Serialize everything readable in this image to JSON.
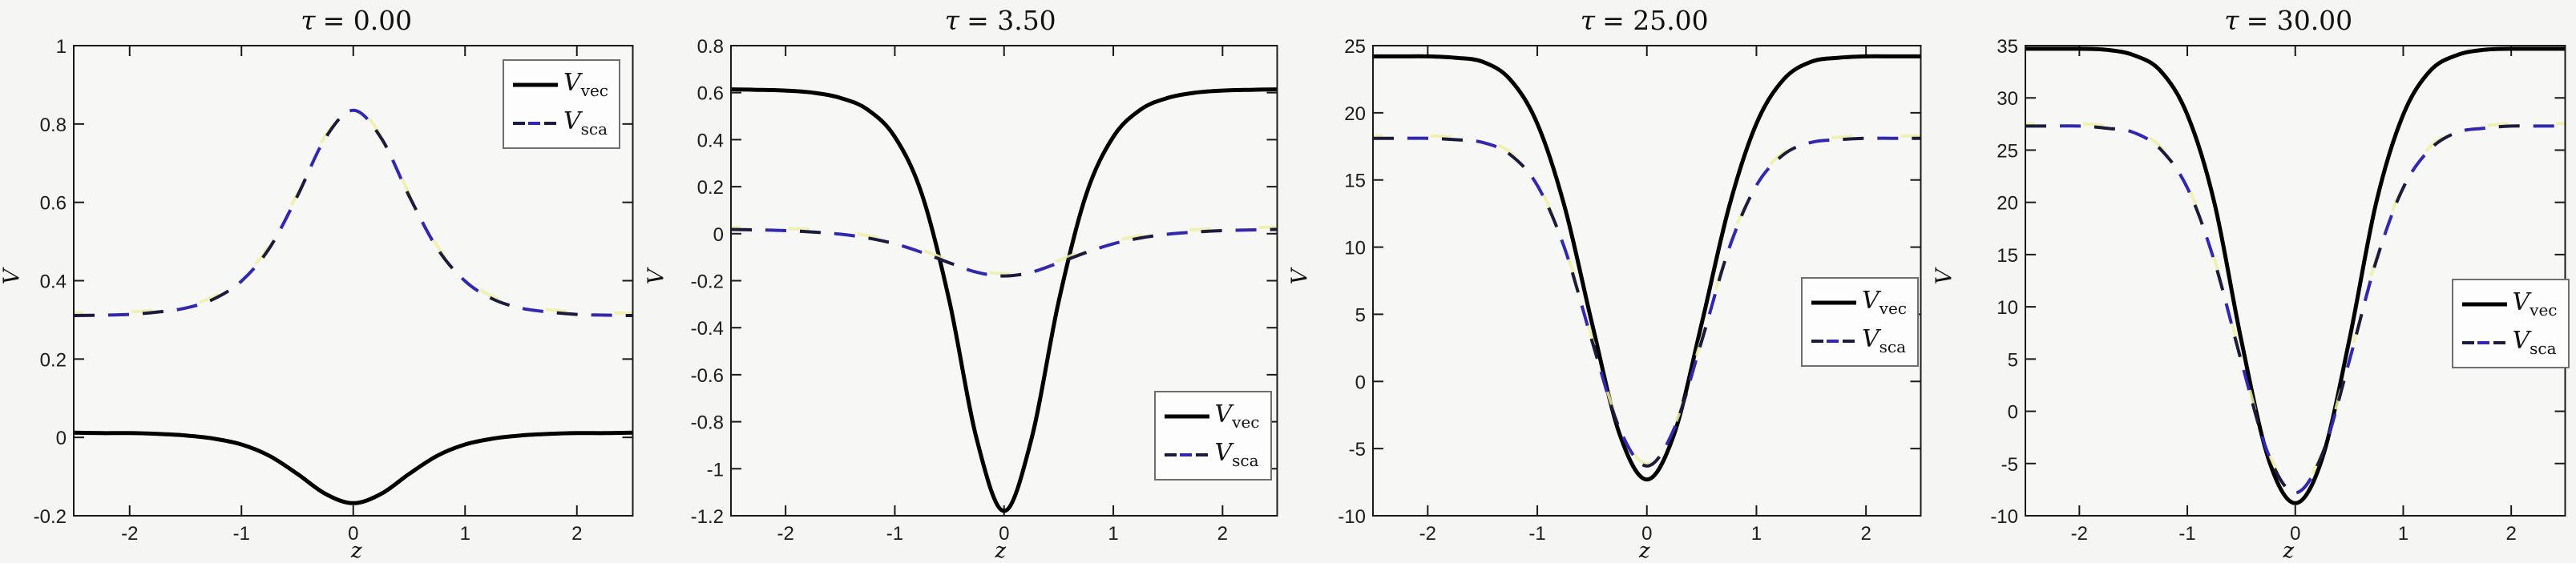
{
  "figure": {
    "background": "#f5f5f4",
    "axes_background": "#f7f7f6",
    "spine_color": "#1a1a1a",
    "tick_label_color": "#1c1c1c",
    "underlay_color": "#efefa8",
    "legend_background": "#fdfdfd",
    "legend_border_color": "#6f6f6f"
  },
  "chart_data": [
    {
      "type": "line",
      "tau": 0.0,
      "title": "τ = 0.00",
      "title_symbol": "τ",
      "title_rest": "= 0.00",
      "xlabel": "z",
      "ylabel": "V",
      "xlim": [
        -2.5,
        2.5
      ],
      "ylim": [
        -0.2,
        1
      ],
      "grid": false,
      "xticks": [
        -2,
        -1,
        0,
        1,
        2
      ],
      "xtick_labels": [
        "-2",
        "-1",
        "0",
        "1",
        "2"
      ],
      "yticks": [
        1,
        0.8,
        0.6,
        0.4,
        0.2,
        0,
        -0.2
      ],
      "ytick_labels": [
        "1",
        "0.8",
        "0.6",
        "0.4",
        "0.2",
        "0",
        "-0.2"
      ],
      "legend": {
        "position": "northeast",
        "entries": [
          {
            "symbol": "V",
            "sub": "vec",
            "line_style": "solid",
            "color": "#000000"
          },
          {
            "symbol": "V",
            "sub": "sca",
            "line_style": "dashed",
            "color": "#3228b0",
            "dash_alt_color": "#1b1b3c"
          }
        ]
      },
      "series": [
        {
          "name": "V_vec",
          "style": "solid",
          "color": "#000000",
          "x": [
            -2.5,
            -2.25,
            -2,
            -1.75,
            -1.5,
            -1.25,
            -1,
            -0.75,
            -0.5,
            -0.25,
            0,
            0.25,
            0.5,
            0.75,
            1,
            1.25,
            1.5,
            1.75,
            2,
            2.25,
            2.5
          ],
          "y": [
            0.012,
            0.011,
            0.011,
            0.009,
            0.005,
            -0.003,
            -0.018,
            -0.047,
            -0.093,
            -0.144,
            -0.168,
            -0.144,
            -0.093,
            -0.047,
            -0.018,
            -0.003,
            0.005,
            0.009,
            0.011,
            0.011,
            0.012
          ]
        },
        {
          "name": "V_sca",
          "style": "dashed",
          "color": "#3228b0",
          "dash_alt_color": "#1b1b3c",
          "x": [
            -2.5,
            -2.25,
            -2,
            -1.75,
            -1.5,
            -1.25,
            -1,
            -0.75,
            -0.5,
            -0.25,
            0,
            0.25,
            0.5,
            0.75,
            1,
            1.25,
            1.5,
            1.75,
            2,
            2.25,
            2.5
          ],
          "y": [
            0.311,
            0.312,
            0.314,
            0.32,
            0.33,
            0.353,
            0.399,
            0.483,
            0.616,
            0.764,
            0.835,
            0.764,
            0.616,
            0.483,
            0.399,
            0.353,
            0.33,
            0.32,
            0.314,
            0.312,
            0.311
          ]
        }
      ]
    },
    {
      "type": "line",
      "tau": 3.5,
      "title": "τ = 3.50",
      "title_symbol": "τ",
      "title_rest": "= 3.50",
      "xlabel": "z",
      "ylabel": "V",
      "xlim": [
        -2.5,
        2.5
      ],
      "ylim": [
        -1.2,
        0.8
      ],
      "grid": false,
      "xticks": [
        -2,
        -1,
        0,
        1,
        2
      ],
      "xtick_labels": [
        "-2",
        "-1",
        "0",
        "1",
        "2"
      ],
      "yticks": [
        0.8,
        0.6,
        0.4,
        0.2,
        0,
        -0.2,
        -0.4,
        -0.6,
        -0.8,
        -1,
        -1.2
      ],
      "ytick_labels": [
        "0.8",
        "0.6",
        "0.4",
        "0.2",
        "0",
        "-0.2",
        "-0.4",
        "-0.6",
        "-0.8",
        "-1",
        "-1.2"
      ],
      "legend": {
        "position": "southeast",
        "entries": [
          {
            "symbol": "V",
            "sub": "vec",
            "line_style": "solid",
            "color": "#000000"
          },
          {
            "symbol": "V",
            "sub": "sca",
            "line_style": "dashed",
            "color": "#3228b0",
            "dash_alt_color": "#1b1b3c"
          }
        ]
      },
      "series": [
        {
          "name": "V_vec",
          "style": "solid",
          "color": "#000000",
          "x": [
            -2.5,
            -2.25,
            -2,
            -1.75,
            -1.5,
            -1.25,
            -1,
            -0.75,
            -0.5,
            -0.25,
            0,
            0.25,
            0.5,
            0.75,
            1,
            1.25,
            1.5,
            1.75,
            2,
            2.25,
            2.5
          ],
          "y": [
            0.614,
            0.612,
            0.609,
            0.6,
            0.578,
            0.528,
            0.412,
            0.165,
            -0.288,
            -0.875,
            -1.18,
            -0.875,
            -0.288,
            0.165,
            0.412,
            0.528,
            0.578,
            0.6,
            0.609,
            0.612,
            0.614
          ]
        },
        {
          "name": "V_sca",
          "style": "dashed",
          "color": "#3228b0",
          "dash_alt_color": "#1b1b3c",
          "x": [
            -2.5,
            -2.25,
            -2,
            -1.75,
            -1.5,
            -1.25,
            -1,
            -0.75,
            -0.5,
            -0.25,
            0,
            0.25,
            0.5,
            0.75,
            1,
            1.25,
            1.5,
            1.75,
            2,
            2.25,
            2.5
          ],
          "y": [
            0.018,
            0.016,
            0.013,
            0.007,
            -0.002,
            -0.018,
            -0.043,
            -0.08,
            -0.124,
            -0.164,
            -0.18,
            -0.164,
            -0.124,
            -0.08,
            -0.043,
            -0.018,
            -0.002,
            0.007,
            0.013,
            0.016,
            0.018
          ]
        }
      ]
    },
    {
      "type": "line",
      "tau": 25.0,
      "title": "τ = 25.00",
      "title_symbol": "τ",
      "title_rest": "= 25.00",
      "xlabel": "z",
      "ylabel": "V",
      "xlim": [
        -2.5,
        2.5
      ],
      "ylim": [
        -10,
        25
      ],
      "grid": false,
      "xticks": [
        -2,
        -1,
        0,
        1,
        2
      ],
      "xtick_labels": [
        "-2",
        "-1",
        "0",
        "1",
        "2"
      ],
      "yticks": [
        25,
        20,
        15,
        10,
        5,
        0,
        -5,
        -10
      ],
      "ytick_labels": [
        "25",
        "20",
        "15",
        "10",
        "5",
        "0",
        "-5",
        "-10"
      ],
      "legend": {
        "position": "east",
        "entries": [
          {
            "symbol": "V",
            "sub": "vec",
            "line_style": "solid",
            "color": "#000000"
          },
          {
            "symbol": "V",
            "sub": "sca",
            "line_style": "dashed",
            "color": "#3228b0",
            "dash_alt_color": "#1b1b3c"
          }
        ]
      },
      "series": [
        {
          "name": "V_vec",
          "style": "solid",
          "color": "#000000",
          "x": [
            -2.5,
            -2.25,
            -2,
            -1.75,
            -1.5,
            -1.25,
            -1,
            -0.75,
            -0.5,
            -0.25,
            0,
            0.25,
            0.5,
            0.75,
            1,
            1.25,
            1.5,
            1.75,
            2,
            2.25,
            2.5
          ],
          "y": [
            24.2,
            24.2,
            24.2,
            24.1,
            23.8,
            22.5,
            19.2,
            13.0,
            4.3,
            -3.9,
            -7.3,
            -3.9,
            4.3,
            13.0,
            19.2,
            22.5,
            23.8,
            24.1,
            24.2,
            24.2,
            24.2
          ]
        },
        {
          "name": "V_sca",
          "style": "dashed",
          "color": "#3228b0",
          "dash_alt_color": "#1b1b3c",
          "x": [
            -2.5,
            -2.25,
            -2,
            -1.75,
            -1.5,
            -1.25,
            -1,
            -0.75,
            -0.5,
            -0.25,
            0,
            0.25,
            0.5,
            0.75,
            1,
            1.25,
            1.5,
            1.75,
            2,
            2.25,
            2.5
          ],
          "y": [
            18.1,
            18.1,
            18.1,
            18.0,
            17.8,
            16.9,
            14.6,
            9.9,
            3.0,
            -3.5,
            -6.3,
            -3.5,
            3.0,
            9.9,
            14.6,
            16.9,
            17.8,
            18.0,
            18.1,
            18.1,
            18.1
          ]
        }
      ]
    },
    {
      "type": "line",
      "tau": 30.0,
      "title": "τ = 30.00",
      "title_symbol": "τ",
      "title_rest": "= 30.00",
      "xlabel": "z",
      "ylabel": "V",
      "xlim": [
        -2.5,
        2.5
      ],
      "ylim": [
        -10,
        35
      ],
      "grid": false,
      "xticks": [
        -2,
        -1,
        0,
        1,
        2
      ],
      "xtick_labels": [
        "-2",
        "-1",
        "0",
        "1",
        "2"
      ],
      "yticks": [
        35,
        30,
        25,
        20,
        15,
        10,
        5,
        0,
        -5,
        -10
      ],
      "ytick_labels": [
        "35",
        "30",
        "25",
        "20",
        "15",
        "10",
        "5",
        "0",
        "-5",
        "-10"
      ],
      "legend": {
        "position": "east",
        "entries": [
          {
            "symbol": "V",
            "sub": "vec",
            "line_style": "solid",
            "color": "#000000"
          },
          {
            "symbol": "V",
            "sub": "sca",
            "line_style": "dashed",
            "color": "#3228b0",
            "dash_alt_color": "#1b1b3c"
          }
        ]
      },
      "series": [
        {
          "name": "V_vec",
          "style": "solid",
          "color": "#000000",
          "x": [
            -2.5,
            -2.25,
            -2,
            -1.75,
            -1.5,
            -1.25,
            -1,
            -0.75,
            -0.5,
            -0.25,
            0,
            0.25,
            0.5,
            0.75,
            1,
            1.25,
            1.5,
            1.75,
            2,
            2.25,
            2.5
          ],
          "y": [
            34.7,
            34.7,
            34.7,
            34.6,
            34.1,
            32.6,
            28.4,
            20.0,
            6.8,
            -4.5,
            -8.8,
            -4.5,
            6.8,
            20.0,
            28.4,
            32.6,
            34.1,
            34.6,
            34.7,
            34.7,
            34.7
          ]
        },
        {
          "name": "V_sca",
          "style": "dashed",
          "color": "#3228b0",
          "dash_alt_color": "#1b1b3c",
          "x": [
            -2.5,
            -2.25,
            -2,
            -1.75,
            -1.5,
            -1.25,
            -1,
            -0.75,
            -0.5,
            -0.25,
            0,
            0.25,
            0.5,
            0.75,
            1,
            1.25,
            1.5,
            1.75,
            2,
            2.25,
            2.5
          ],
          "y": [
            27.3,
            27.3,
            27.3,
            27.1,
            26.7,
            25.1,
            21.4,
            14.4,
            4.8,
            -4.1,
            -7.8,
            -4.1,
            4.8,
            14.4,
            21.4,
            25.1,
            26.7,
            27.1,
            27.3,
            27.3,
            27.3
          ]
        }
      ]
    }
  ]
}
